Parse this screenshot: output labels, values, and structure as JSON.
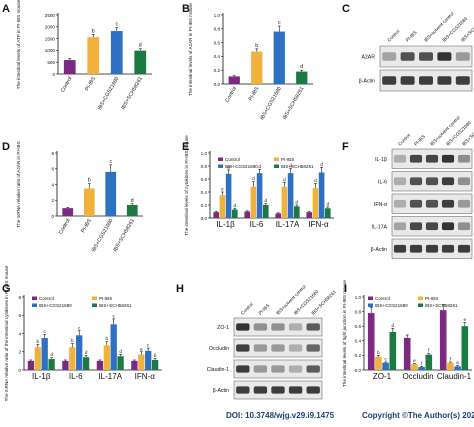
{
  "colors": {
    "control": "#7b2a82",
    "pi_ibs": "#f0b23c",
    "cgs": "#2e70c2",
    "sch": "#1b7a42",
    "text": "#111111",
    "footer": "#1f3e7a"
  },
  "footer": {
    "doi": "DOI: 10.3748/wjg.v29.i9.1475",
    "copyright": "Copyright ©The Author(s) 2023."
  },
  "chart_data": [
    {
      "panel": "A",
      "type": "bar",
      "ylabel": "The intestinal levels of ATP in PI-IBS mouse",
      "yticks": [
        0,
        500,
        1000,
        1500,
        2000,
        2500
      ],
      "ylim": [
        0,
        2500
      ],
      "categories": [
        "Control",
        "PI-IBS",
        "IBS+CGS21680",
        "IBS+SCH58261"
      ],
      "values": [
        590,
        1560,
        1820,
        990
      ],
      "errors": [
        70,
        110,
        150,
        80
      ],
      "letters": [
        "",
        "b",
        "c",
        "d"
      ],
      "colors": [
        "#7b2a82",
        "#f0b23c",
        "#2e70c2",
        "#1b7a42"
      ]
    },
    {
      "panel": "B",
      "type": "bar",
      "ylabel": "The intestinal levels of A2AR in PI-IBS mouse",
      "yticks": [
        0.0,
        0.2,
        0.4,
        0.6,
        0.8,
        1.0
      ],
      "ylim": [
        0,
        1.0
      ],
      "categories": [
        "Control",
        "PI-IBS",
        "IBS+CGS21680",
        "IBS+SCH58261"
      ],
      "values": [
        0.11,
        0.47,
        0.76,
        0.18
      ],
      "errors": [
        0.01,
        0.04,
        0.08,
        0.02
      ],
      "letters": [
        "",
        "b",
        "c",
        "d"
      ],
      "colors": [
        "#7b2a82",
        "#f0b23c",
        "#2e70c2",
        "#1b7a42"
      ]
    },
    {
      "panel": "D",
      "type": "bar",
      "ylabel": "The mRNA relative ratio of A2AR in PI-IBS",
      "yticks": [
        0,
        2,
        4,
        6,
        8
      ],
      "ylim": [
        0,
        8
      ],
      "categories": [
        "Control",
        "PI-IBS",
        "IBS+CGS21680",
        "IBS+SCH58261"
      ],
      "values": [
        1.0,
        3.5,
        5.6,
        1.4
      ],
      "errors": [
        0.1,
        0.6,
        0.9,
        0.15
      ],
      "letters": [
        "",
        "b",
        "c",
        "d"
      ],
      "colors": [
        "#7b2a82",
        "#f0b23c",
        "#2e70c2",
        "#1b7a42"
      ]
    },
    {
      "panel": "E",
      "type": "bar",
      "ylabel": "The intestinal levels of cytokines in PI-IBS mouse",
      "yticks": [
        0.0,
        0.2,
        0.4,
        0.6,
        0.8,
        1.0
      ],
      "ylim": [
        0,
        1.0
      ],
      "categories": [
        "IL-1β",
        "IL-6",
        "IL-17A",
        "IFN-α"
      ],
      "series": [
        {
          "name": "Control",
          "values": [
            0.09,
            0.1,
            0.07,
            0.09
          ],
          "errors": [
            0.01,
            0.01,
            0.01,
            0.01
          ],
          "letters": [
            "",
            "",
            "",
            ""
          ]
        },
        {
          "name": "PI-IBS",
          "values": [
            0.35,
            0.48,
            0.48,
            0.46
          ],
          "errors": [
            0.05,
            0.08,
            0.07,
            0.07
          ],
          "letters": [
            "e",
            "d",
            "d",
            "d"
          ]
        },
        {
          "name": "IBS+CGS21680",
          "values": [
            0.68,
            0.69,
            0.69,
            0.7
          ],
          "errors": [
            0.06,
            0.06,
            0.07,
            0.08
          ],
          "letters": [
            "d",
            "d",
            "d",
            "d"
          ]
        },
        {
          "name": "IBS+SCH58261",
          "values": [
            0.13,
            0.2,
            0.18,
            0.15
          ],
          "errors": [
            0.02,
            0.02,
            0.02,
            0.02
          ],
          "letters": [
            "d",
            "d",
            "d",
            "d"
          ]
        }
      ],
      "colors": [
        "#7b2a82",
        "#f0b23c",
        "#2e70c2",
        "#1b7a42"
      ]
    },
    {
      "panel": "G",
      "type": "bar",
      "ylabel": "The mRNA relative ratio of the intestinal cytokines in PI-IBS mouse",
      "yticks": [
        0,
        2,
        4,
        6,
        8
      ],
      "ylim": [
        0,
        8
      ],
      "categories": [
        "IL-1β",
        "IL-6",
        "IL-17A",
        "IFN-α"
      ],
      "series": [
        {
          "name": "Control",
          "values": [
            1.0,
            1.0,
            1.0,
            1.0
          ],
          "errors": [
            0.1,
            0.1,
            0.1,
            0.1
          ],
          "letters": [
            "",
            "",
            "",
            ""
          ]
        },
        {
          "name": "PI-IBS",
          "values": [
            2.5,
            2.5,
            2.7,
            1.7
          ],
          "errors": [
            0.3,
            0.4,
            0.4,
            0.3
          ],
          "letters": [
            "b",
            "b",
            "b",
            "a"
          ]
        },
        {
          "name": "IBS+CGS21680",
          "values": [
            3.5,
            3.8,
            5.0,
            2.1
          ],
          "errors": [
            0.4,
            0.5,
            0.6,
            0.3
          ],
          "letters": [
            "c",
            "c",
            "c",
            "c"
          ]
        },
        {
          "name": "IBS+SCH58261",
          "values": [
            1.2,
            1.4,
            1.5,
            1.1
          ],
          "errors": [
            0.15,
            0.2,
            0.2,
            0.15
          ],
          "letters": [
            "d",
            "d",
            "d",
            "b"
          ]
        }
      ],
      "colors": [
        "#7b2a82",
        "#f0b23c",
        "#2e70c2",
        "#1b7a42"
      ]
    },
    {
      "panel": "I",
      "type": "bar",
      "ylabel": "The intestinal levels of tight junction in PI-IBS mouse",
      "yticks": [
        0.0,
        0.2,
        0.4,
        0.6,
        0.8,
        1.0
      ],
      "ylim": [
        0,
        1.0
      ],
      "categories": [
        "ZO-1",
        "Occludin",
        "Claudin-1"
      ],
      "series": [
        {
          "name": "Control",
          "values": [
            0.78,
            0.44,
            0.82
          ],
          "errors": [
            0.08,
            0.04,
            0.08
          ],
          "letters": [
            "",
            "",
            ""
          ]
        },
        {
          "name": "PI-IBS",
          "values": [
            0.18,
            0.08,
            0.1
          ],
          "errors": [
            0.02,
            0.01,
            0.01
          ],
          "letters": [
            "b",
            "e",
            "f"
          ]
        },
        {
          "name": "IBS+CGS21680",
          "values": [
            0.1,
            0.04,
            0.05
          ],
          "errors": [
            0.01,
            0.01,
            0.01
          ],
          "letters": [
            "c",
            "f",
            "e"
          ]
        },
        {
          "name": "IBS+SCH58261",
          "values": [
            0.52,
            0.21,
            0.6
          ],
          "errors": [
            0.05,
            0.02,
            0.05
          ],
          "letters": [
            "d",
            "f",
            "e"
          ]
        }
      ],
      "colors": [
        "#7b2a82",
        "#f0b23c",
        "#2e70c2",
        "#1b7a42"
      ]
    }
  ],
  "blots": [
    {
      "panel": "C",
      "lanes": [
        "Control",
        "PI-IBS",
        "IBS+solvent control",
        "IBS+CGS21680",
        "IBS+SCH58261"
      ],
      "rows": [
        {
          "label": "A2AR",
          "intensity": [
            0.35,
            0.75,
            0.75,
            0.9,
            0.4
          ]
        },
        {
          "label": "β-Actin",
          "intensity": [
            0.85,
            0.85,
            0.85,
            0.85,
            0.85
          ]
        }
      ]
    },
    {
      "panel": "F",
      "lanes": [
        "Control",
        "PI-IBS",
        "IBS+solvent control",
        "IBS+CGS21680",
        "IBS+SCH58261"
      ],
      "rows": [
        {
          "label": "IL-1β",
          "intensity": [
            0.3,
            0.8,
            0.8,
            0.9,
            0.45
          ]
        },
        {
          "label": "IL-6",
          "intensity": [
            0.3,
            0.75,
            0.75,
            0.85,
            0.45
          ]
        },
        {
          "label": "IFN-α",
          "intensity": [
            0.3,
            0.75,
            0.75,
            0.85,
            0.4
          ]
        },
        {
          "label": "IL-17A",
          "intensity": [
            0.35,
            0.8,
            0.8,
            0.9,
            0.45
          ]
        },
        {
          "label": "β-Actin",
          "intensity": [
            0.85,
            0.85,
            0.85,
            0.85,
            0.85
          ]
        }
      ]
    },
    {
      "panel": "H",
      "lanes": [
        "Control",
        "PI-IBS",
        "IBS+solvent control",
        "IBS+CGS21680",
        "IBS+SCH58261"
      ],
      "rows": [
        {
          "label": "ZO-1",
          "intensity": [
            0.9,
            0.45,
            0.45,
            0.3,
            0.7
          ]
        },
        {
          "label": "Occludin",
          "intensity": [
            0.85,
            0.4,
            0.4,
            0.3,
            0.65
          ]
        },
        {
          "label": "Claudin-1",
          "intensity": [
            0.85,
            0.4,
            0.4,
            0.3,
            0.7
          ]
        },
        {
          "label": "β-Actin",
          "intensity": [
            0.85,
            0.85,
            0.85,
            0.85,
            0.85
          ]
        }
      ]
    }
  ]
}
